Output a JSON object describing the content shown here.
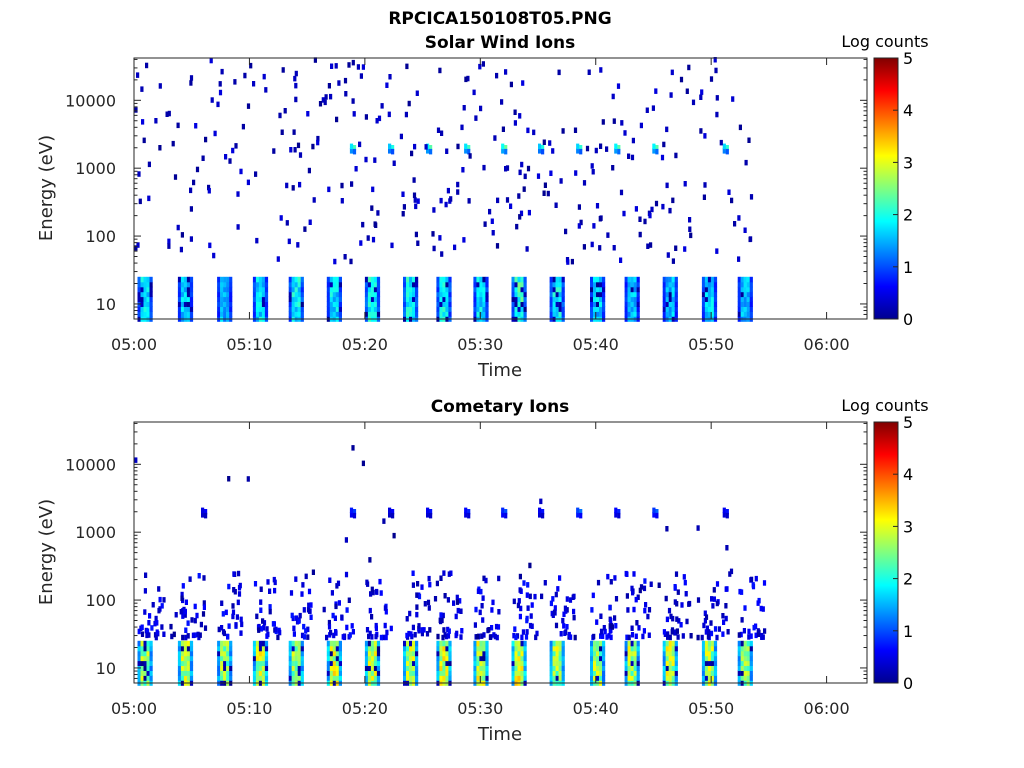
{
  "figure_title": "RPCICA150108T05.PNG",
  "colorbar_label": "Log counts",
  "colorbar_ticks": [
    "0",
    "1",
    "2",
    "3",
    "4",
    "5"
  ],
  "colormap": "jet",
  "colors": {
    "axis": "#262626",
    "jet_stops": [
      "#00008F",
      "#0000FF",
      "#00FFFF",
      "#FFFF00",
      "#FF0000",
      "#800000"
    ]
  },
  "chart_data": [
    {
      "type": "heatmap",
      "title": "Solar Wind Ions",
      "xlabel": "Time",
      "ylabel": "Energy (eV)",
      "x_ticks": [
        "05:00",
        "05:10",
        "05:20",
        "05:30",
        "05:40",
        "05:50",
        "06:00"
      ],
      "x_tick_minutes": [
        0,
        10,
        20,
        30,
        40,
        50,
        60
      ],
      "xlim_minutes": [
        0,
        63.5
      ],
      "y_scale": "log",
      "y_ticks": [
        "10",
        "100",
        "1000",
        "10000"
      ],
      "ylim_eV": [
        6,
        42000
      ],
      "clim": [
        0,
        5
      ],
      "data_end_minute": 54,
      "low_energy_band": {
        "energy_eV": [
          6,
          27
        ],
        "burst_start_minutes": [
          0.3,
          3.8,
          7.2,
          10.3,
          13.4,
          16.7,
          20.0,
          23.3,
          26.2,
          29.4,
          32.7,
          36.0,
          39.5,
          42.5,
          45.8,
          49.2,
          52.3
        ],
        "burst_peak_log_counts": [
          1.8,
          1.7,
          1.6,
          1.8,
          1.9,
          1.8,
          2.0,
          2.0,
          1.9,
          1.8,
          2.2,
          1.9,
          1.7,
          1.6,
          1.6,
          1.7,
          1.6
        ]
      },
      "solar_wind_band": {
        "energy_eV": [
          1700,
          2300
        ],
        "minutes": [
          18.7,
          22.0,
          25.3,
          28.6,
          31.8,
          35.0,
          38.3,
          41.6,
          44.9,
          51.0
        ],
        "peak_log_counts": [
          2.2,
          2.0,
          2.3,
          2.2,
          2.4,
          2.0,
          2.1,
          2.3,
          2.3,
          2.1
        ]
      },
      "sparse_noise_log_counts": 0.4
    },
    {
      "type": "heatmap",
      "title": "Cometary Ions",
      "xlabel": "Time",
      "ylabel": "Energy (eV)",
      "x_ticks": [
        "05:00",
        "05:10",
        "05:20",
        "05:30",
        "05:40",
        "05:50",
        "06:00"
      ],
      "x_tick_minutes": [
        0,
        10,
        20,
        30,
        40,
        50,
        60
      ],
      "xlim_minutes": [
        0,
        63.5
      ],
      "y_scale": "log",
      "y_ticks": [
        "10",
        "100",
        "1000",
        "10000"
      ],
      "ylim_eV": [
        6,
        42000
      ],
      "clim": [
        0,
        5
      ],
      "data_end_minute": 54,
      "low_energy_band": {
        "energy_eV": [
          6,
          27
        ],
        "burst_start_minutes": [
          0.3,
          3.8,
          7.2,
          10.3,
          13.4,
          16.7,
          20.0,
          23.3,
          26.2,
          29.4,
          32.7,
          36.0,
          39.5,
          42.5,
          45.8,
          49.2,
          52.3
        ],
        "burst_peak_log_counts": [
          2.7,
          2.8,
          2.7,
          2.9,
          2.8,
          3.0,
          2.9,
          2.8,
          3.0,
          2.9,
          3.1,
          2.8,
          2.7,
          2.8,
          2.9,
          2.8,
          2.7
        ]
      },
      "tail_band": {
        "energy_eV": [
          28,
          250
        ],
        "log_counts": 0.6
      },
      "high_energy_band": {
        "energy_eV": [
          1700,
          2300
        ],
        "minutes": [
          5.8,
          18.7,
          22.0,
          25.3,
          28.6,
          31.8,
          35.0,
          38.3,
          41.6,
          44.9,
          51.0
        ],
        "peak_log_counts": [
          0.6,
          0.9,
          0.6,
          0.7,
          0.8,
          1.0,
          0.7,
          1.2,
          0.8,
          1.1,
          0.7
        ]
      },
      "sparse_noise_log_counts": 0.3
    }
  ]
}
